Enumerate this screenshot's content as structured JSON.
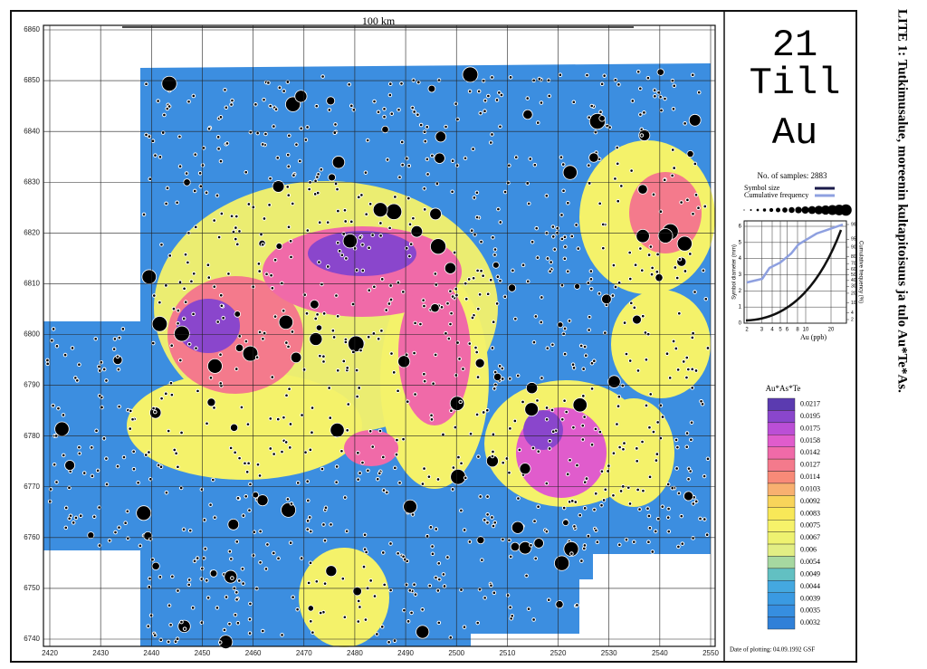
{
  "map": {
    "scale_label": "100 km",
    "xticks": [
      2420,
      2430,
      2440,
      2450,
      2460,
      2470,
      2480,
      2490,
      2500,
      2510,
      2520,
      2530,
      2540,
      2550
    ],
    "yticks": [
      6860,
      6850,
      6840,
      6830,
      6820,
      6810,
      6800,
      6790,
      6780,
      6770,
      6760,
      6750,
      6740
    ]
  },
  "panel": {
    "number": "21",
    "medium": "Till",
    "element": "Au",
    "samples": "No. of samples: 2883",
    "symbol_size": "Symbol size",
    "cumulative_frequency": "Cumulative frequency",
    "inset": {
      "y_label": "Symbol diameter (mm)",
      "y2_label": "Cumulative frequency (%)",
      "x_label": "Au (ppb)",
      "yticks": [
        0,
        1,
        2,
        3,
        4,
        5,
        6
      ],
      "y2ticks": [
        2,
        4,
        10,
        20,
        30,
        40,
        50,
        60,
        70,
        80,
        90,
        95,
        99
      ],
      "xticks": [
        2,
        3,
        4,
        5,
        6,
        8,
        10,
        20
      ]
    },
    "legend": {
      "title": "Au*As*Te",
      "classes": [
        {
          "value": 0.0217,
          "color": "#5b3bb0"
        },
        {
          "value": 0.0195,
          "color": "#8a46cc"
        },
        {
          "value": 0.0175,
          "color": "#bb4fd6"
        },
        {
          "value": 0.0158,
          "color": "#e05ccc"
        },
        {
          "value": 0.0142,
          "color": "#f06aa8"
        },
        {
          "value": 0.0127,
          "color": "#f47a8c"
        },
        {
          "value": 0.0114,
          "color": "#f88a78"
        },
        {
          "value": 0.0103,
          "color": "#f8b070"
        },
        {
          "value": 0.0092,
          "color": "#f8d45a"
        },
        {
          "value": 0.0083,
          "color": "#f8e858"
        },
        {
          "value": 0.0075,
          "color": "#f6f26a"
        },
        {
          "value": 0.0067,
          "color": "#eef270"
        },
        {
          "value": 0.006,
          "color": "#e2ee84"
        },
        {
          "value": 0.0054,
          "color": "#a6d8a0"
        },
        {
          "value": 0.0049,
          "color": "#62c0c2"
        },
        {
          "value": 0.0044,
          "color": "#44a8e0"
        },
        {
          "value": 0.0039,
          "color": "#3a9ae2"
        },
        {
          "value": 0.0035,
          "color": "#368ee0"
        },
        {
          "value": 0.0032,
          "color": "#3080d8"
        }
      ]
    },
    "date": "Date of plotting: 04.09.1992 GSF"
  },
  "caption": "LITE 1: Tutkimusalue, moreenin kultapitoisuus ja tulo Au*Te*As."
}
